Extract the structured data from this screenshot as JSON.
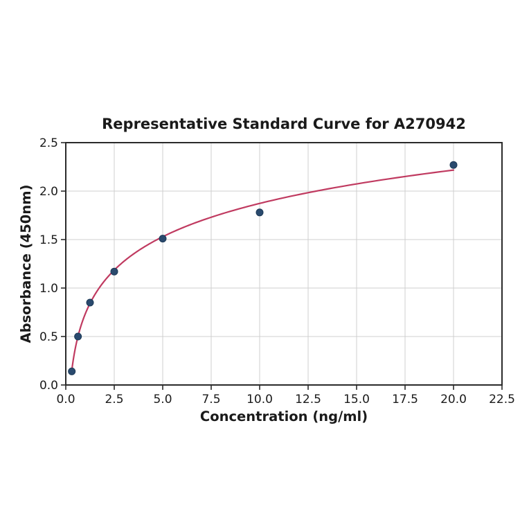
{
  "chart_data": {
    "type": "scatter",
    "title": "Representative Standard Curve for A270942",
    "xlabel": "Concentration (ng/ml)",
    "ylabel": "Absorbance (450nm)",
    "xlim": [
      0,
      22.5
    ],
    "ylim": [
      0,
      2.5
    ],
    "grid": true,
    "legend_position": "none",
    "xticks": {
      "values": [
        0,
        2.5,
        5,
        7.5,
        10,
        12.5,
        15,
        17.5,
        20,
        22.5
      ],
      "labels": [
        "0.0",
        "2.5",
        "5.0",
        "7.5",
        "10.0",
        "12.5",
        "15.0",
        "17.5",
        "20.0",
        "22.5"
      ]
    },
    "yticks": {
      "values": [
        0,
        0.5,
        1,
        1.5,
        2,
        2.5
      ],
      "labels": [
        "0.0",
        "0.5",
        "1.0",
        "1.5",
        "2.0",
        "2.5"
      ]
    },
    "series": [
      {
        "name": "standard-points",
        "type": "scatter",
        "points": [
          {
            "x": 0.31,
            "y": 0.14
          },
          {
            "x": 0.63,
            "y": 0.5
          },
          {
            "x": 1.25,
            "y": 0.85
          },
          {
            "x": 2.5,
            "y": 1.17
          },
          {
            "x": 5.0,
            "y": 1.51
          },
          {
            "x": 10.0,
            "y": 1.78
          },
          {
            "x": 20.0,
            "y": 2.27
          }
        ]
      },
      {
        "name": "fit-curve",
        "type": "line",
        "model": "logarithmic",
        "equation": "y = 0.496*ln(x) + 0.731",
        "a": 0.496,
        "b": 0.731,
        "x_range": [
          0.31,
          20.0
        ]
      }
    ],
    "colors": {
      "marker_fill": "#2a4a6e",
      "marker_edge": "#1d3click_a57",
      "curve": "#c03a60",
      "grid": "#cfcfcf",
      "spine": "#2a2a2a",
      "text": "#1a1a1a",
      "background": "#ffffff"
    }
  }
}
